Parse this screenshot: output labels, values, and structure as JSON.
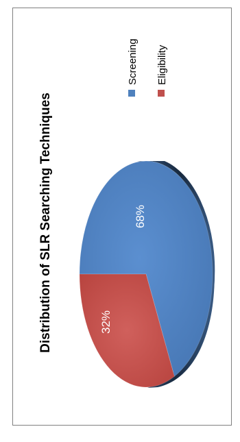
{
  "chart_data": {
    "type": "pie",
    "title": "Distribution of SLR Searching Techniques",
    "slices": [
      {
        "label": "Screening",
        "value": 68,
        "display": "68%",
        "color": "#4f81bd"
      },
      {
        "label": "Eligibility",
        "value": 32,
        "display": "32%",
        "color": "#c0504d"
      }
    ],
    "legend": {
      "position": "right",
      "entries": [
        {
          "label": "Screening",
          "color": "#4f81bd"
        },
        {
          "label": "Eligibility",
          "color": "#c0504d"
        }
      ]
    },
    "orientation": "rotated-90-counterclockwise",
    "style": "3d"
  }
}
